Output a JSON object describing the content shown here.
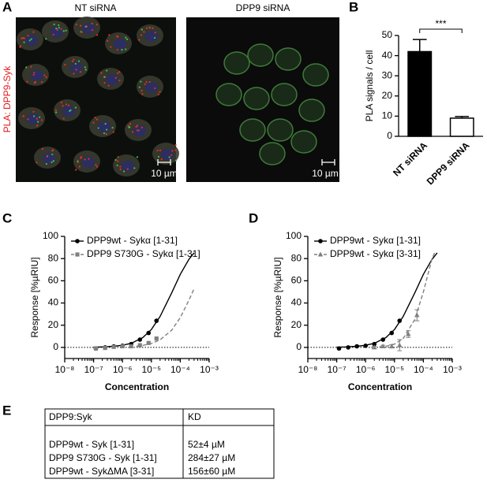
{
  "panels": [
    "A",
    "B",
    "C",
    "D",
    "E"
  ],
  "images": [
    {
      "title": "NT siRNA",
      "scale_bar": "10 µm"
    },
    {
      "title": "DPP9 siRNA",
      "scale_bar": "10 µm"
    }
  ],
  "image_label": {
    "prefix": "PLA:",
    "target": "DPP9-Syk"
  },
  "chart_data": [
    {
      "type": "bar",
      "ylabel": "PLA signals / cell",
      "categories": [
        "NT siRNA",
        "DPP9 siRNA"
      ],
      "values": [
        42,
        9
      ],
      "errors": [
        6,
        0.8
      ],
      "colors": [
        "#000000",
        "#ffffff"
      ],
      "ylim": [
        0,
        50
      ],
      "yticks": [
        0,
        10,
        20,
        30,
        40,
        50
      ],
      "significance": "***"
    },
    {
      "type": "scatter",
      "xlabel": "Concentration",
      "ylabel": "Response [%µRIU]",
      "xscale": "log",
      "xlim": [
        1e-08,
        0.001
      ],
      "xticks": [
        {
          "value": 1e-08,
          "label": "10⁻⁸"
        },
        {
          "value": 1e-07,
          "label": "10⁻⁷"
        },
        {
          "value": 1e-06,
          "label": "10⁻⁶"
        },
        {
          "value": 1e-05,
          "label": "10⁻⁵"
        },
        {
          "value": 0.0001,
          "label": "10⁻⁴"
        },
        {
          "value": 0.001,
          "label": "10⁻³"
        }
      ],
      "ylim": [
        -10,
        100
      ],
      "yticks": [
        0,
        20,
        40,
        60,
        80,
        100
      ],
      "reference_line": 0,
      "legend": "upper left",
      "series": [
        {
          "name": "DPP9wt - Sykα [1-31]",
          "color": "#000000",
          "marker": "circle",
          "x": [
            1.2e-07,
            2.5e-07,
            5e-07,
            1e-06,
            2e-06,
            4e-06,
            8e-06,
            1.5e-05
          ],
          "values": [
            -1,
            0,
            1,
            1.5,
            3,
            7,
            13,
            24
          ],
          "fit": {
            "dashed": false,
            "x": [
              1e-07,
              2e-07,
              5e-07,
              1e-06,
              2e-06,
              5e-06,
              1e-05,
              2e-05,
              5e-05,
              0.0001,
              0.0002,
              0.0003
            ],
            "values": [
              0.2,
              0.4,
              1.0,
              1.9,
              3.7,
              8.8,
              16.1,
              27.8,
              49.0,
              65.8,
              79.4,
              85.2
            ]
          }
        },
        {
          "name": "DPP9 S730G - Sykα [1-31]",
          "color": "#808080",
          "marker": "square",
          "x": [
            1.2e-07,
            2.5e-07,
            5e-07,
            1e-06,
            2e-06,
            4e-06,
            8e-06,
            1.5e-05
          ],
          "values": [
            -1,
            -0.5,
            0.5,
            1,
            1,
            2,
            4,
            8
          ],
          "fit": {
            "dashed": true,
            "x": [
              3e-06,
              5e-06,
              1e-05,
              2e-05,
              5e-05,
              0.0001,
              0.0002,
              0.0003
            ],
            "values": [
              1.1,
              1.8,
              3.5,
              6.8,
              15.4,
              26.8,
              42.6,
              52.9
            ]
          }
        }
      ]
    },
    {
      "type": "scatter",
      "xlabel": "Concentration",
      "ylabel": "Response [%µRIU]",
      "xscale": "log",
      "xlim": [
        1e-08,
        0.001
      ],
      "xticks": [
        {
          "value": 1e-08,
          "label": "10⁻⁸"
        },
        {
          "value": 1e-07,
          "label": "10⁻⁷"
        },
        {
          "value": 1e-06,
          "label": "10⁻⁶"
        },
        {
          "value": 1e-05,
          "label": "10⁻⁵"
        },
        {
          "value": 0.0001,
          "label": "10⁻⁴"
        },
        {
          "value": 0.001,
          "label": "10⁻³"
        }
      ],
      "ylim": [
        -10,
        100
      ],
      "yticks": [
        0,
        20,
        40,
        60,
        80,
        100
      ],
      "reference_line": 0,
      "legend": "upper left",
      "series": [
        {
          "name": "DPP9wt - Sykα [1-31]",
          "color": "#000000",
          "marker": "circle",
          "x": [
            1.2e-07,
            2.5e-07,
            5e-07,
            1e-06,
            2e-06,
            4e-06,
            8e-06,
            1.5e-05
          ],
          "values": [
            -1,
            0,
            1,
            1.5,
            3,
            7,
            13,
            24
          ],
          "fit": {
            "dashed": false,
            "x": [
              1e-07,
              2e-07,
              5e-07,
              1e-06,
              2e-06,
              5e-06,
              1e-05,
              2e-05,
              5e-05,
              0.0001,
              0.0002,
              0.0003
            ],
            "values": [
              0.2,
              0.4,
              1.0,
              1.9,
              3.7,
              8.8,
              16.1,
              27.8,
              49.0,
              65.8,
              79.4,
              85.2
            ]
          }
        },
        {
          "name": "DPP9wt - Sykα [3-31]",
          "color": "#808080",
          "marker": "triangle",
          "x": [
            2e-06,
            4e-06,
            8e-06,
            1.5e-05,
            3e-05,
            6e-05
          ],
          "values": [
            0,
            1,
            1,
            2,
            12,
            29
          ],
          "errors": [
            1,
            1,
            1.5,
            5,
            3,
            5
          ],
          "fit": {
            "dashed": true,
            "x": [
              3e-06,
              5e-06,
              1e-05,
              2e-05,
              5e-05,
              0.0001,
              0.0002,
              0.00025
            ],
            "values": [
              0.5,
              1,
              3,
              8,
              25,
              50,
              80,
              86
            ]
          }
        }
      ]
    }
  ],
  "table": {
    "header": [
      "DPP9:Syk",
      "KD"
    ],
    "rows": [
      [
        "DPP9wt - Syk [1-31]",
        "52±4 µM"
      ],
      [
        "DPP9 S730G - Syk [1-31]",
        "284±27 µM"
      ],
      [
        "DPP9wt - SykΔMA [3-31]",
        "156±60 µM"
      ]
    ]
  }
}
